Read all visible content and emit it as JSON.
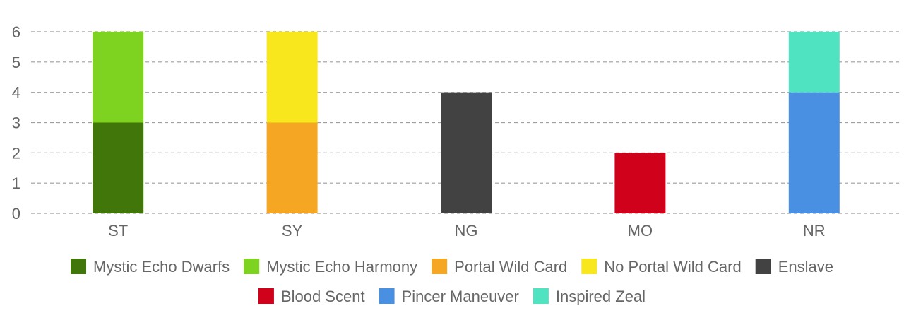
{
  "chart_data": {
    "type": "bar",
    "stacked": true,
    "categories": [
      "ST",
      "SY",
      "NG",
      "MO",
      "NR"
    ],
    "ylim": [
      0,
      6
    ],
    "yticks": [
      0,
      1,
      2,
      3,
      4,
      5,
      6
    ],
    "grid": true,
    "legend_position": "bottom",
    "series": [
      {
        "name": "Mystic Echo Dwarfs",
        "color": "#41760a",
        "values": [
          3,
          0,
          0,
          0,
          0
        ]
      },
      {
        "name": "Mystic Echo Harmony",
        "color": "#7ed321",
        "values": [
          3,
          0,
          0,
          0,
          0
        ]
      },
      {
        "name": "Portal Wild Card",
        "color": "#f5a623",
        "values": [
          0,
          3,
          0,
          0,
          0
        ]
      },
      {
        "name": "No Portal Wild Card",
        "color": "#f8e71c",
        "values": [
          0,
          3,
          0,
          0,
          0
        ]
      },
      {
        "name": "Enslave",
        "color": "#424242",
        "values": [
          0,
          0,
          4,
          0,
          0
        ]
      },
      {
        "name": "Blood Scent",
        "color": "#d0021b",
        "values": [
          0,
          0,
          0,
          2,
          0
        ]
      },
      {
        "name": "Pincer Maneuver",
        "color": "#4a90e2",
        "values": [
          0,
          0,
          0,
          0,
          4
        ]
      },
      {
        "name": "Inspired Zeal",
        "color": "#50e3c2",
        "values": [
          0,
          0,
          0,
          0,
          2
        ]
      }
    ]
  }
}
